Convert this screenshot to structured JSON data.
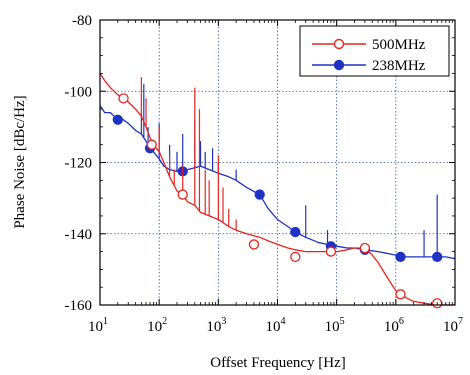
{
  "chart_data": {
    "type": "line",
    "title": "",
    "xlabel": "Offset Frequency [Hz]",
    "ylabel": "Phase Noise [dBc/Hz]",
    "x_scale": "log",
    "xlim": [
      10,
      10000000
    ],
    "ylim": [
      -160,
      -80
    ],
    "x_ticks": [
      {
        "value": 10,
        "base": "10",
        "exp": "1"
      },
      {
        "value": 100,
        "base": "10",
        "exp": "2"
      },
      {
        "value": 1000,
        "base": "10",
        "exp": "3"
      },
      {
        "value": 10000,
        "base": "10",
        "exp": "4"
      },
      {
        "value": 100000,
        "base": "10",
        "exp": "5"
      },
      {
        "value": 1000000,
        "base": "10",
        "exp": "6"
      },
      {
        "value": 10000000,
        "base": "10",
        "exp": "7"
      }
    ],
    "y_ticks": [
      {
        "value": -80,
        "label": "-80"
      },
      {
        "value": -100,
        "label": "-100"
      },
      {
        "value": -120,
        "label": "-120"
      },
      {
        "value": -140,
        "label": "-140"
      },
      {
        "value": -160,
        "label": "-160"
      }
    ],
    "grid": true,
    "legend_position": "top-right",
    "series": [
      {
        "name": "500MHz",
        "color": "#e8261e",
        "marker": "open-circle",
        "x": [
          10,
          12,
          15,
          20,
          25,
          30,
          40,
          50,
          60,
          70,
          80,
          100,
          120,
          150,
          200,
          250,
          300,
          400,
          500,
          700,
          1000,
          1500,
          2000,
          3000,
          5000,
          7000,
          10000,
          15000,
          20000,
          30000,
          50000,
          70000,
          100000,
          150000,
          200000,
          300000,
          400000,
          500000,
          700000,
          1000000,
          1500000,
          2000000,
          3000000,
          5000000,
          7000000,
          10000000
        ],
        "y": [
          -95,
          -97,
          -99,
          -101,
          -102,
          -103,
          -105,
          -107,
          -110,
          -113,
          -115,
          -117,
          -120,
          -124,
          -128,
          -129,
          -131,
          -132,
          -134,
          -135,
          -136,
          -138,
          -139,
          -140,
          -141,
          -142,
          -143,
          -144,
          -144.5,
          -145,
          -145,
          -145,
          -145,
          -144.5,
          -144,
          -144,
          -146,
          -148,
          -152,
          -156,
          -158,
          -159,
          -159.5,
          -160,
          -160,
          -160
        ],
        "marker_x": [
          25,
          75,
          250,
          4000,
          20000,
          80000,
          300000,
          1200000,
          5000000
        ],
        "marker_y": [
          -102,
          -115,
          -129,
          -143,
          -146.5,
          -145,
          -144,
          -157,
          -159.5
        ],
        "spikes": [
          {
            "x": 50,
            "y": -96
          },
          {
            "x": 60,
            "y": -102
          },
          {
            "x": 100,
            "y": -110
          },
          {
            "x": 150,
            "y": -118
          },
          {
            "x": 180,
            "y": -122
          },
          {
            "x": 250,
            "y": -121
          },
          {
            "x": 400,
            "y": -99
          },
          {
            "x": 480,
            "y": -105
          },
          {
            "x": 600,
            "y": -122
          },
          {
            "x": 700,
            "y": -125
          },
          {
            "x": 1000,
            "y": -118
          },
          {
            "x": 1200,
            "y": -127
          },
          {
            "x": 1500,
            "y": -133
          },
          {
            "x": 2000,
            "y": -136
          }
        ]
      },
      {
        "name": "238MHz",
        "color": "#1f32c4",
        "marker": "filled-circle",
        "x": [
          10,
          12,
          15,
          20,
          25,
          30,
          40,
          50,
          60,
          70,
          80,
          100,
          120,
          150,
          200,
          250,
          300,
          400,
          500,
          700,
          1000,
          1500,
          2000,
          3000,
          5000,
          7000,
          10000,
          15000,
          20000,
          30000,
          50000,
          70000,
          100000,
          150000,
          200000,
          300000,
          500000,
          700000,
          1000000,
          1500000,
          2000000,
          3000000,
          5000000,
          7000000,
          10000000
        ],
        "y": [
          -104,
          -106,
          -106,
          -108,
          -108,
          -109,
          -111,
          -112,
          -114,
          -116,
          -117,
          -119,
          -121,
          -122,
          -122.5,
          -122,
          -122,
          -121.5,
          -121,
          -122,
          -123,
          -124,
          -125,
          -127,
          -129,
          -133,
          -136,
          -138,
          -139.5,
          -141,
          -142.5,
          -143,
          -143.5,
          -144,
          -144,
          -144.5,
          -145,
          -145.5,
          -146,
          -146.5,
          -146.5,
          -146.5,
          -146.5,
          -146.5,
          -147
        ],
        "marker_x": [
          20,
          70,
          250,
          5000,
          20000,
          80000,
          300000,
          1200000,
          5000000
        ],
        "marker_y": [
          -108,
          -116,
          -122.5,
          -129,
          -139.5,
          -143.5,
          -144.5,
          -146.5,
          -146.5
        ],
        "spikes": [
          {
            "x": 50,
            "y": -106
          },
          {
            "x": 55,
            "y": -98
          },
          {
            "x": 65,
            "y": -110
          },
          {
            "x": 100,
            "y": -109
          },
          {
            "x": 150,
            "y": -115
          },
          {
            "x": 200,
            "y": -117
          },
          {
            "x": 250,
            "y": -112
          },
          {
            "x": 400,
            "y": -108
          },
          {
            "x": 500,
            "y": -114
          },
          {
            "x": 600,
            "y": -117
          },
          {
            "x": 800,
            "y": -116
          },
          {
            "x": 1000,
            "y": -120
          },
          {
            "x": 2000,
            "y": -122
          },
          {
            "x": 30000,
            "y": -132
          },
          {
            "x": 70000,
            "y": -139
          },
          {
            "x": 3000000,
            "y": -139
          },
          {
            "x": 5000000,
            "y": -129
          }
        ]
      }
    ]
  }
}
